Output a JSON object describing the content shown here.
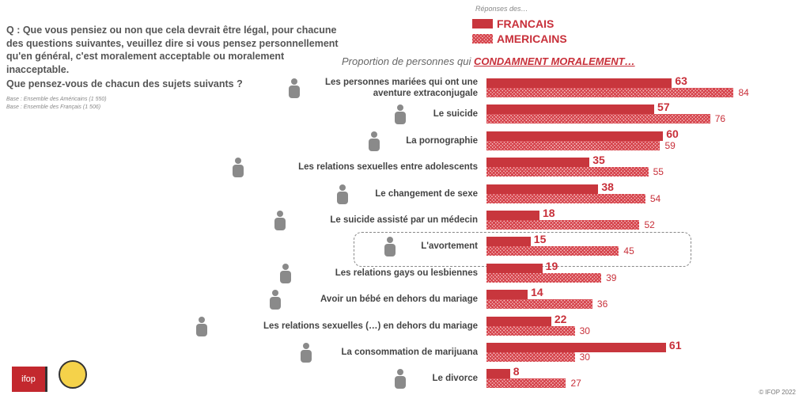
{
  "question": {
    "line": "Q : Que vous pensiez ou non que cela devrait être légal, pour chacune des questions suivantes, veuillez dire si vous pensez personnellement qu'en général, c'est moralement acceptable ou moralement inacceptable.",
    "line2": "Que pensez-vous de chacun des sujets suivants ?"
  },
  "bases": [
    "Base : Ensemble des Américains (1 550)",
    "Base : Ensemble des Français (1 506)"
  ],
  "footer": {
    "copyright": "© IFOP 2022",
    "logo": "ifop"
  },
  "colors": {
    "fr": "#c8363d",
    "us": "#e8848a"
  },
  "chart_data": {
    "type": "bar",
    "title": "Proportion de personnes qui",
    "title_emph": "CONDAMNENT MORALEMENT…",
    "legend_title": "Réponses des…",
    "legend_placement": "top",
    "categories": [
      "Les personnes mariées qui ont une aventure extraconjugale",
      "Le suicide",
      "La pornographie",
      "Les relations sexuelles entre adolescents",
      "Le changement de sexe",
      "Le suicide assisté par un médecin",
      "L'avortement",
      "Les relations gays ou lesbiennes",
      "Avoir un bébé en dehors du mariage",
      "Les relations sexuelles (…) en dehors du mariage",
      "La consommation de marijuana",
      "Le divorce"
    ],
    "series": [
      {
        "name": "FRANCAIS",
        "values": [
          63,
          57,
          60,
          35,
          38,
          18,
          15,
          19,
          14,
          22,
          61,
          8
        ]
      },
      {
        "name": "AMERICAINS",
        "values": [
          84,
          76,
          59,
          55,
          54,
          52,
          45,
          39,
          36,
          30,
          30,
          27
        ]
      }
    ],
    "highlight": "L'avortement",
    "xlim": [
      0,
      100
    ]
  }
}
